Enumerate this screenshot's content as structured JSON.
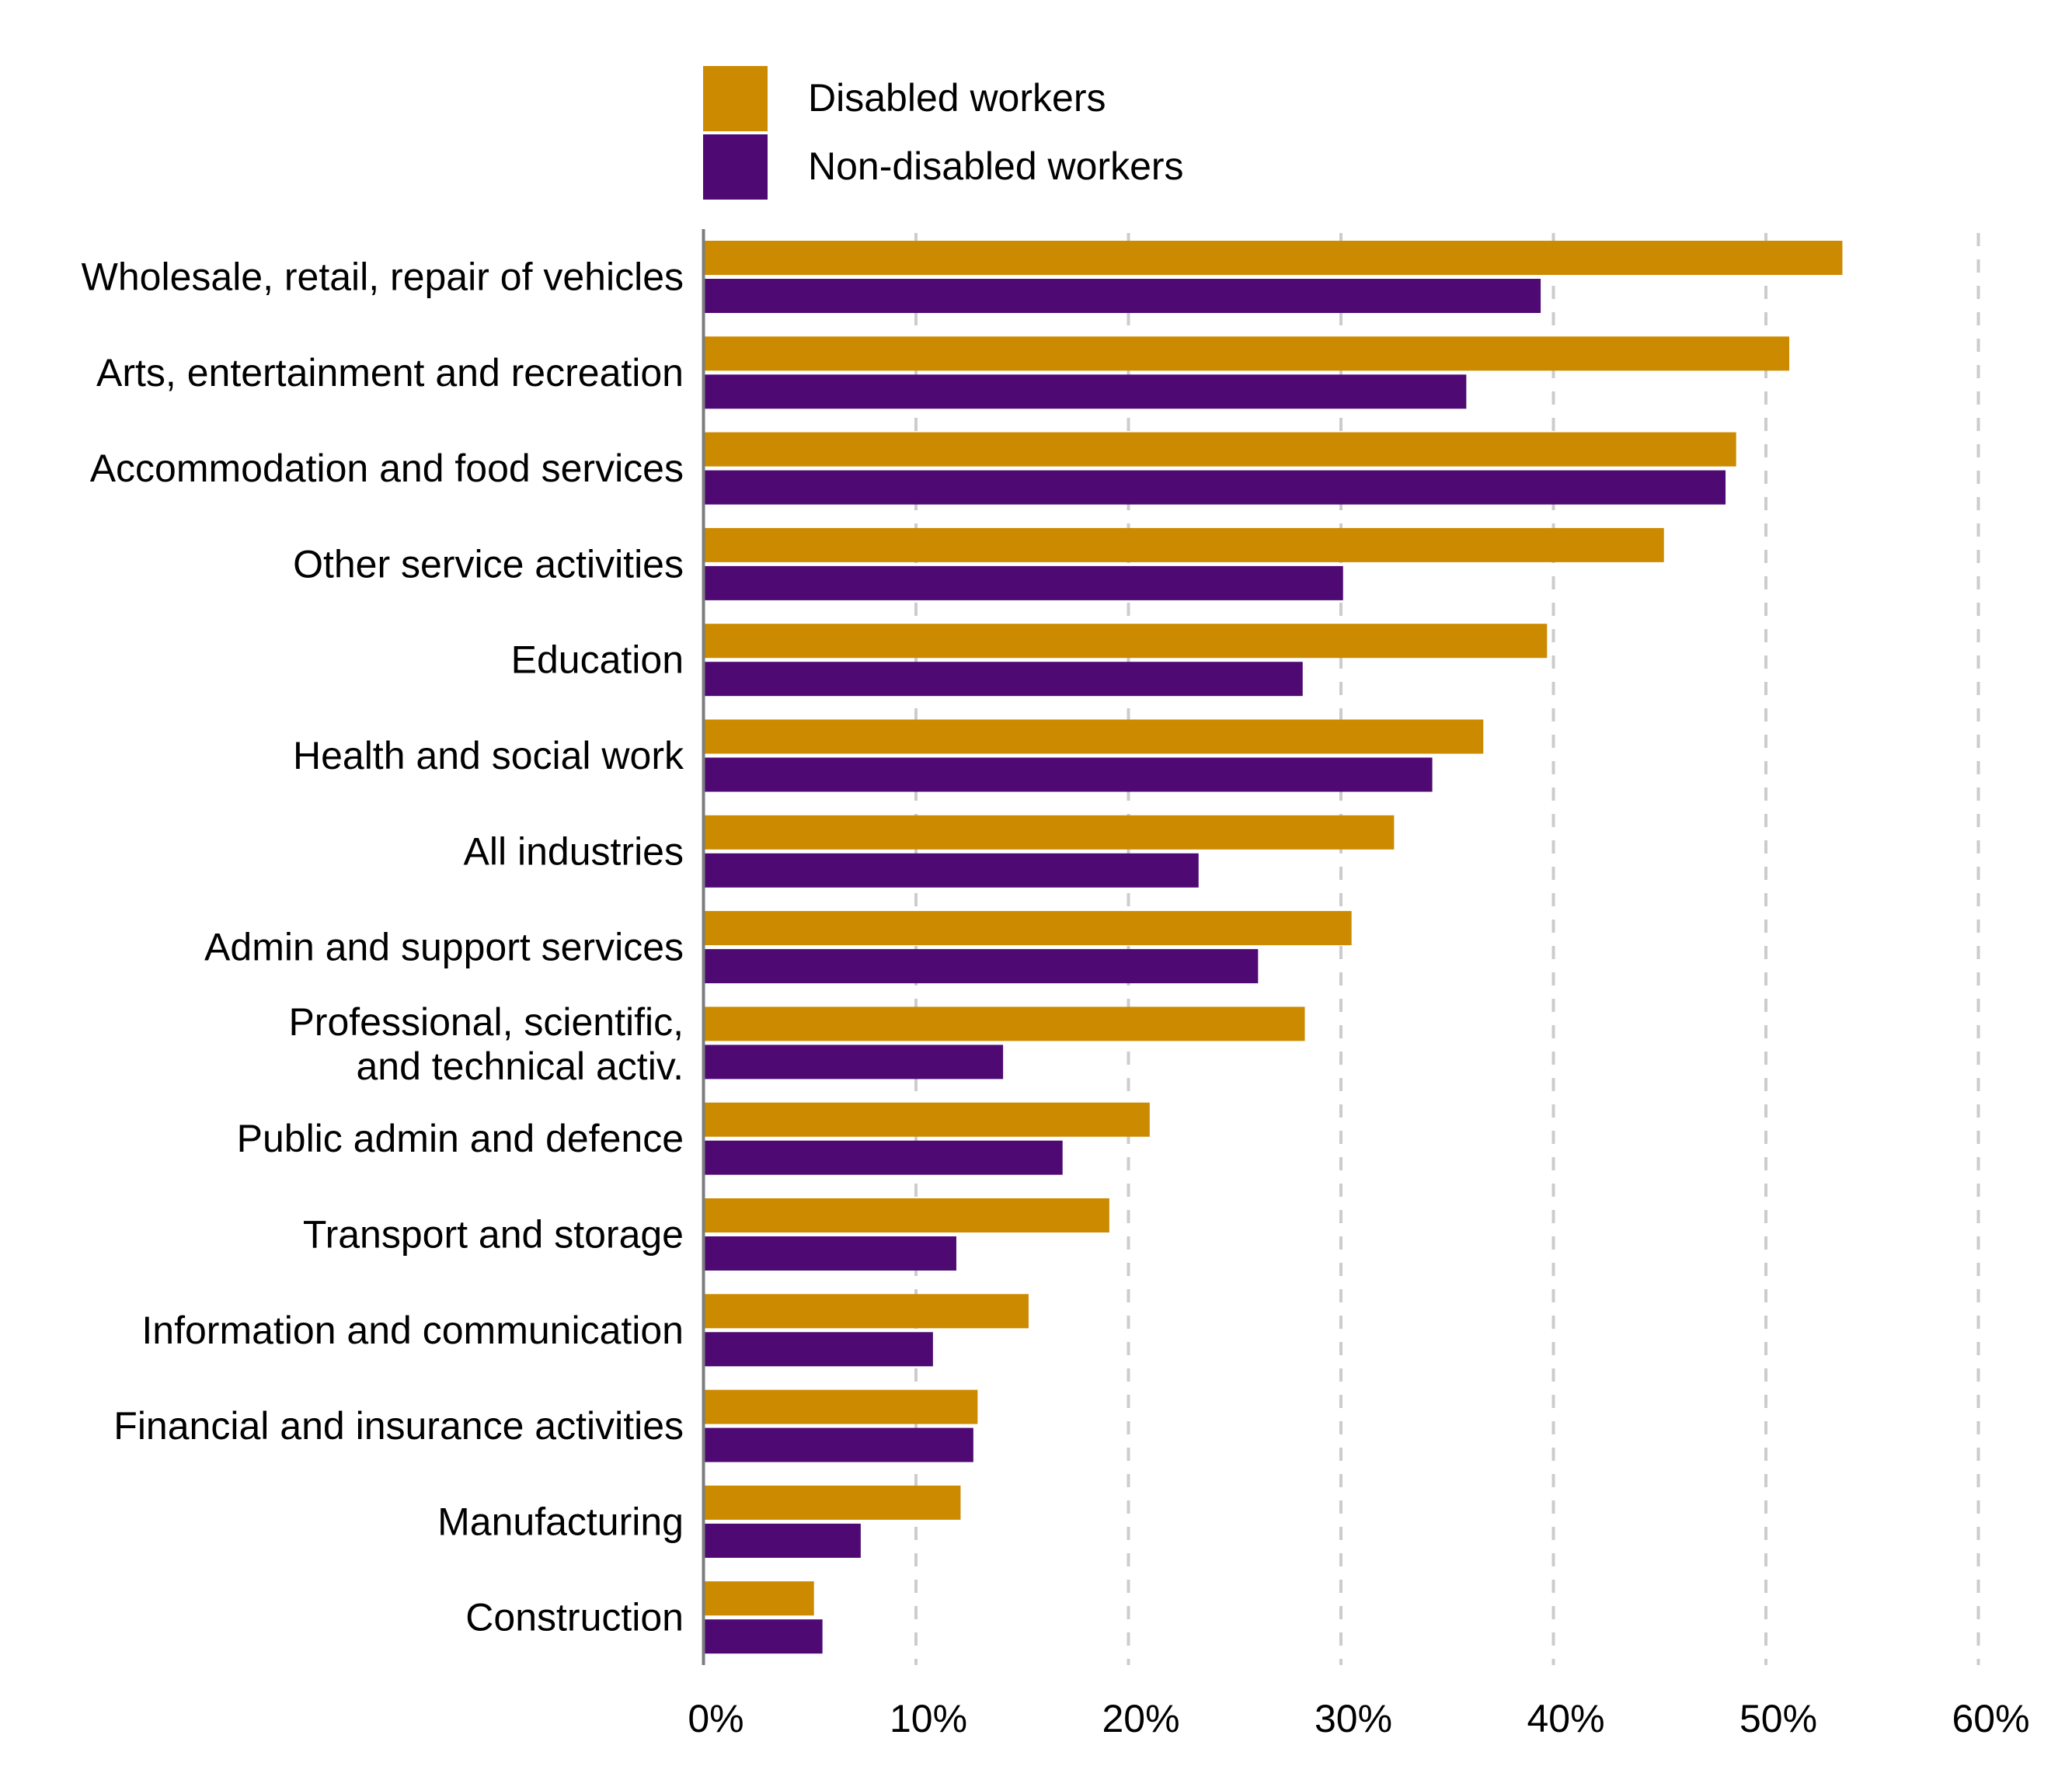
{
  "chart_data": {
    "type": "bar",
    "orientation": "horizontal",
    "title": "",
    "xlabel": "",
    "ylabel": "",
    "xlim": [
      0,
      60
    ],
    "x_ticks": [
      0,
      10,
      20,
      30,
      40,
      50,
      60
    ],
    "x_tick_labels": [
      "0%",
      "10%",
      "20%",
      "30%",
      "40%",
      "50%",
      "60%"
    ],
    "grid": "vertical dashed",
    "legend_position": "top",
    "categories": [
      [
        "Wholesale, retail, repair of vehicles"
      ],
      [
        "Arts, entertainment and recreation"
      ],
      [
        "Accommodation and food services"
      ],
      [
        "Other service activities"
      ],
      [
        "Education"
      ],
      [
        "Health and social work"
      ],
      [
        "All industries"
      ],
      [
        "Admin and support services"
      ],
      [
        "Professional, scientific,",
        "and technical activ."
      ],
      [
        "Public admin and defence"
      ],
      [
        "Transport and storage"
      ],
      [
        "Information and communication"
      ],
      [
        "Financial and insurance activities"
      ],
      [
        "Manufacturing"
      ],
      [
        "Construction"
      ]
    ],
    "series": [
      {
        "name": "Disabled workers",
        "color": "#CC8A00",
        "values": [
          53.6,
          51.1,
          48.6,
          45.2,
          39.7,
          36.7,
          32.5,
          30.5,
          28.3,
          21.0,
          19.1,
          15.3,
          12.9,
          12.1,
          5.2
        ]
      },
      {
        "name": "Non-disabled workers",
        "color": "#4F0973",
        "values": [
          39.4,
          35.9,
          48.1,
          30.1,
          28.2,
          34.3,
          23.3,
          26.1,
          14.1,
          16.9,
          11.9,
          10.8,
          12.7,
          7.4,
          5.6
        ]
      }
    ]
  }
}
